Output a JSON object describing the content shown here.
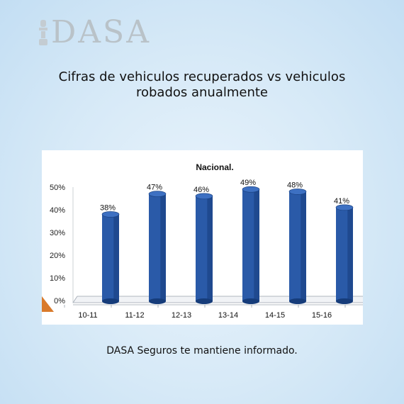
{
  "logo": {
    "text": "DASA"
  },
  "page_title": "Cifras de vehiculos recuperados vs vehiculos robados anualmente",
  "footer_text": "DASA Seguros te mantiene informado.",
  "colors": {
    "bar": "#2a5aa8",
    "bar_dark": "#163c7a",
    "accent": "#d97a2b"
  },
  "chart_data": {
    "type": "bar",
    "title": "Nacional.",
    "categories": [
      "10-11",
      "11-12",
      "12-13",
      "13-14",
      "14-15",
      "15-16"
    ],
    "values": [
      38,
      47,
      46,
      49,
      48,
      41
    ],
    "value_labels": [
      "38%",
      "47%",
      "46%",
      "49%",
      "48%",
      "41%"
    ],
    "y_ticks": [
      "0%",
      "10%",
      "20%",
      "30%",
      "40%",
      "50%"
    ],
    "ylim": [
      0,
      50
    ],
    "grid": false,
    "xlabel": "",
    "ylabel": ""
  }
}
